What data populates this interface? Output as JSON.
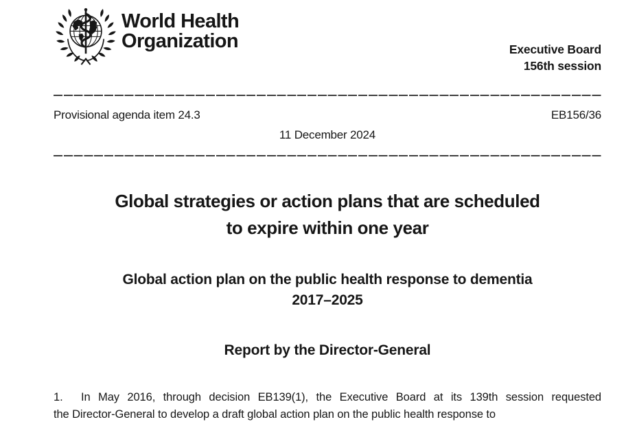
{
  "logo": {
    "wordmark_line1": "World Health",
    "wordmark_line2": "Organization"
  },
  "header_right": {
    "line1": "Executive Board",
    "line2": "156th session"
  },
  "meta": {
    "agenda_item": "Provisional agenda item 24.3",
    "document_code": "EB156/36",
    "date": "11 December 2024"
  },
  "title": {
    "line1": "Global strategies or action plans that are scheduled",
    "line2": "to expire within one year"
  },
  "subtitle": {
    "line1": "Global action plan on the public health response to dementia",
    "line2": "2017–2025"
  },
  "section_heading": "Report by the Director-General",
  "body": {
    "para1_number": "1.",
    "para1_line1": "In May 2016, through decision EB139(1), the Executive Board at its 139th session requested",
    "para1_line2": "the Director-General to develop a draft global action plan on the public health response to"
  },
  "colors": {
    "text": "#161616",
    "divider": "#3d3d3d",
    "background": "#ffffff"
  }
}
